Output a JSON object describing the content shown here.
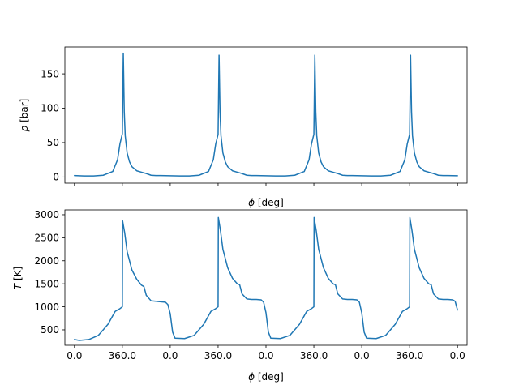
{
  "chart_data": [
    {
      "type": "line",
      "xlabel_parts": [
        "ϕ",
        " [deg]"
      ],
      "ylabel_parts": [
        "p",
        " [bar]"
      ],
      "xlim": [
        -0.2,
        8.2
      ],
      "ylim": [
        -9,
        189
      ],
      "x_ticks": [
        0,
        1,
        2,
        3,
        4,
        5,
        6,
        7,
        8
      ],
      "x_tick_labels_shown": false,
      "y_ticks": [
        0,
        50,
        100,
        150
      ],
      "y_tick_labels": [
        "0",
        "50",
        "100",
        "150"
      ],
      "line_color": "#1f77b4",
      "series": [
        {
          "x": [
            0.0,
            0.2,
            0.4,
            0.6,
            0.8,
            0.9,
            0.95,
            1.0,
            1.02,
            1.04,
            1.06,
            1.1,
            1.15,
            1.2,
            1.3,
            1.4,
            1.5,
            1.6,
            1.7,
            1.8,
            2.0,
            2.2,
            2.4,
            2.6,
            2.8,
            2.9,
            2.95,
            3.0,
            3.02,
            3.04,
            3.06,
            3.1,
            3.15,
            3.2,
            3.3,
            3.4,
            3.5,
            3.6,
            3.7,
            3.8,
            4.0,
            4.2,
            4.4,
            4.6,
            4.8,
            4.9,
            4.95,
            5.0,
            5.02,
            5.04,
            5.06,
            5.1,
            5.15,
            5.2,
            5.3,
            5.4,
            5.5,
            5.6,
            5.7,
            5.8,
            6.0,
            6.2,
            6.4,
            6.6,
            6.8,
            6.9,
            6.95,
            7.0,
            7.02,
            7.04,
            7.06,
            7.1,
            7.15,
            7.2,
            7.3,
            7.4,
            7.5,
            7.6,
            7.7,
            7.8,
            8.0
          ],
          "y": [
            2,
            1.5,
            1.5,
            2.5,
            8,
            25,
            48,
            63,
            180,
            95,
            60,
            35,
            22,
            15,
            9,
            7,
            5,
            2.5,
            2,
            2,
            1.8,
            1.5,
            1.5,
            2.5,
            8,
            25,
            48,
            62,
            177,
            95,
            60,
            35,
            22,
            15,
            9,
            7,
            5,
            2.5,
            2,
            2,
            1.8,
            1.5,
            1.5,
            2.5,
            8,
            25,
            48,
            62,
            177,
            95,
            60,
            35,
            22,
            15,
            9,
            7,
            5,
            2.5,
            2,
            2,
            1.8,
            1.5,
            1.5,
            2.5,
            8,
            25,
            48,
            62,
            177,
            95,
            60,
            35,
            22,
            15,
            9,
            7,
            5,
            2.5,
            2,
            2,
            1.8
          ]
        }
      ]
    },
    {
      "type": "line",
      "xlabel_parts": [
        "ϕ",
        " [deg]"
      ],
      "ylabel_parts": [
        "T",
        " [K]"
      ],
      "xlim": [
        -0.2,
        8.2
      ],
      "ylim": [
        165,
        3105
      ],
      "x_ticks": [
        0,
        1,
        2,
        3,
        4,
        5,
        6,
        7,
        8
      ],
      "x_tick_labels": [
        "0.0",
        "360.0",
        "0.0",
        "360.0",
        "0.0",
        "360.0",
        "0.0",
        "360.0",
        "0.0"
      ],
      "y_ticks": [
        500,
        1000,
        1500,
        2000,
        2500,
        3000
      ],
      "y_tick_labels": [
        "500",
        "1000",
        "1500",
        "2000",
        "2500",
        "3000"
      ],
      "line_color": "#1f77b4",
      "series": [
        {
          "x": [
            0.0,
            0.1,
            0.3,
            0.5,
            0.7,
            0.85,
            0.95,
            1.0,
            1.005,
            1.05,
            1.1,
            1.2,
            1.3,
            1.4,
            1.45,
            1.5,
            1.6,
            1.7,
            1.8,
            1.9,
            1.95,
            2.0,
            2.05,
            2.1,
            2.3,
            2.5,
            2.7,
            2.85,
            2.95,
            3.0,
            3.005,
            3.05,
            3.1,
            3.2,
            3.3,
            3.4,
            3.45,
            3.5,
            3.6,
            3.7,
            3.8,
            3.9,
            3.95,
            4.0,
            4.05,
            4.1,
            4.3,
            4.5,
            4.7,
            4.85,
            4.95,
            5.0,
            5.005,
            5.05,
            5.1,
            5.2,
            5.3,
            5.4,
            5.45,
            5.5,
            5.6,
            5.7,
            5.8,
            5.9,
            5.95,
            6.0,
            6.05,
            6.1,
            6.3,
            6.5,
            6.7,
            6.85,
            6.95,
            7.0,
            7.005,
            7.05,
            7.1,
            7.2,
            7.3,
            7.4,
            7.45,
            7.5,
            7.6,
            7.7,
            7.8,
            7.9,
            7.95,
            8.0
          ],
          "y": [
            290,
            270,
            290,
            380,
            620,
            900,
            960,
            1000,
            2870,
            2600,
            2200,
            1800,
            1600,
            1470,
            1440,
            1250,
            1130,
            1120,
            1110,
            1100,
            1050,
            850,
            450,
            320,
            310,
            380,
            620,
            900,
            960,
            1000,
            2940,
            2650,
            2250,
            1850,
            1620,
            1500,
            1480,
            1280,
            1170,
            1160,
            1160,
            1150,
            1100,
            870,
            450,
            320,
            310,
            380,
            620,
            900,
            960,
            1000,
            2940,
            2650,
            2250,
            1850,
            1620,
            1500,
            1480,
            1280,
            1170,
            1160,
            1160,
            1150,
            1100,
            870,
            450,
            320,
            310,
            380,
            620,
            900,
            960,
            1000,
            2940,
            2650,
            2250,
            1850,
            1620,
            1500,
            1480,
            1280,
            1170,
            1160,
            1160,
            1150,
            1120,
            930
          ]
        }
      ]
    }
  ]
}
